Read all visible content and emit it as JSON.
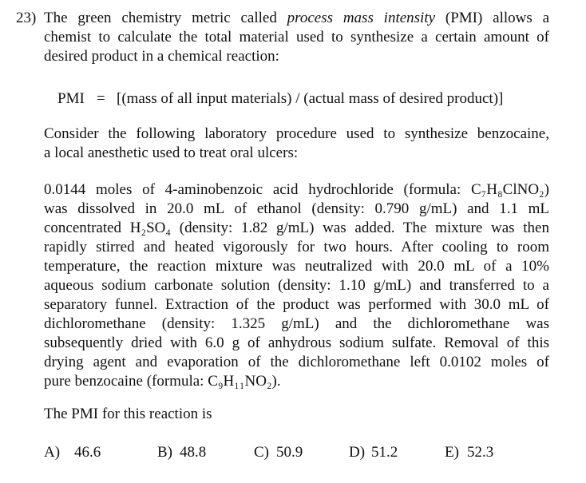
{
  "question": {
    "number": "23)",
    "intro": {
      "line_0": [
        "The green chemistry metric called ",
        "process mass intensity",
        " (PMI) allows a"
      ],
      "lines": [
        "chemist to calculate the total material used to synthesize a certain amount of",
        "desired product in a chemical reaction:"
      ]
    },
    "formula": {
      "lhs": "PMI",
      "eq": "=",
      "rhs": "[(mass of all input materials) / (actual mass of desired product)]"
    },
    "context": [
      "Consider the following laboratory procedure used to synthesize benzocaine,",
      "a local anesthetic used to treat oral ulcers:"
    ],
    "procedure": [
      "0.0144 moles of 4-aminobenzoic acid hydrochloride (formula: C₇H₈ClNO₂)",
      "was dissolved in 20.0 mL of ethanol (density: 0.790 g/mL) and 1.1 mL",
      "concentrated H₂SO₄ (density: 1.82 g/mL) was added. The mixture was then",
      "rapidly stirred and heated vigorously for two hours. After cooling to room",
      "temperature, the reaction mixture was neutralized with 20.0 mL of a 10%",
      "aqueous sodium carbonate solution (density: 1.10 g/mL) and transferred to a",
      "separatory funnel. Extraction of the product was performed with 30.0 mL of",
      "dichloromethane (density: 1.325 g/mL) and the dichloromethane was",
      "subsequently dried with 6.0 g of anhydrous sodium sulfate. Removal of this",
      "drying agent and evaporation of the dichloromethane left 0.0102 moles of",
      "pure benzocaine (formula: C₉H₁₁NO₂)."
    ],
    "prompt": "The PMI for this reaction is",
    "choices": [
      {
        "label": "A)",
        "text": "46.6"
      },
      {
        "label": "B)",
        "text": "48.8"
      },
      {
        "label": "C)",
        "text": "50.9"
      },
      {
        "label": "D)",
        "text": "51.2"
      },
      {
        "label": "E)",
        "text": "52.3"
      }
    ]
  }
}
